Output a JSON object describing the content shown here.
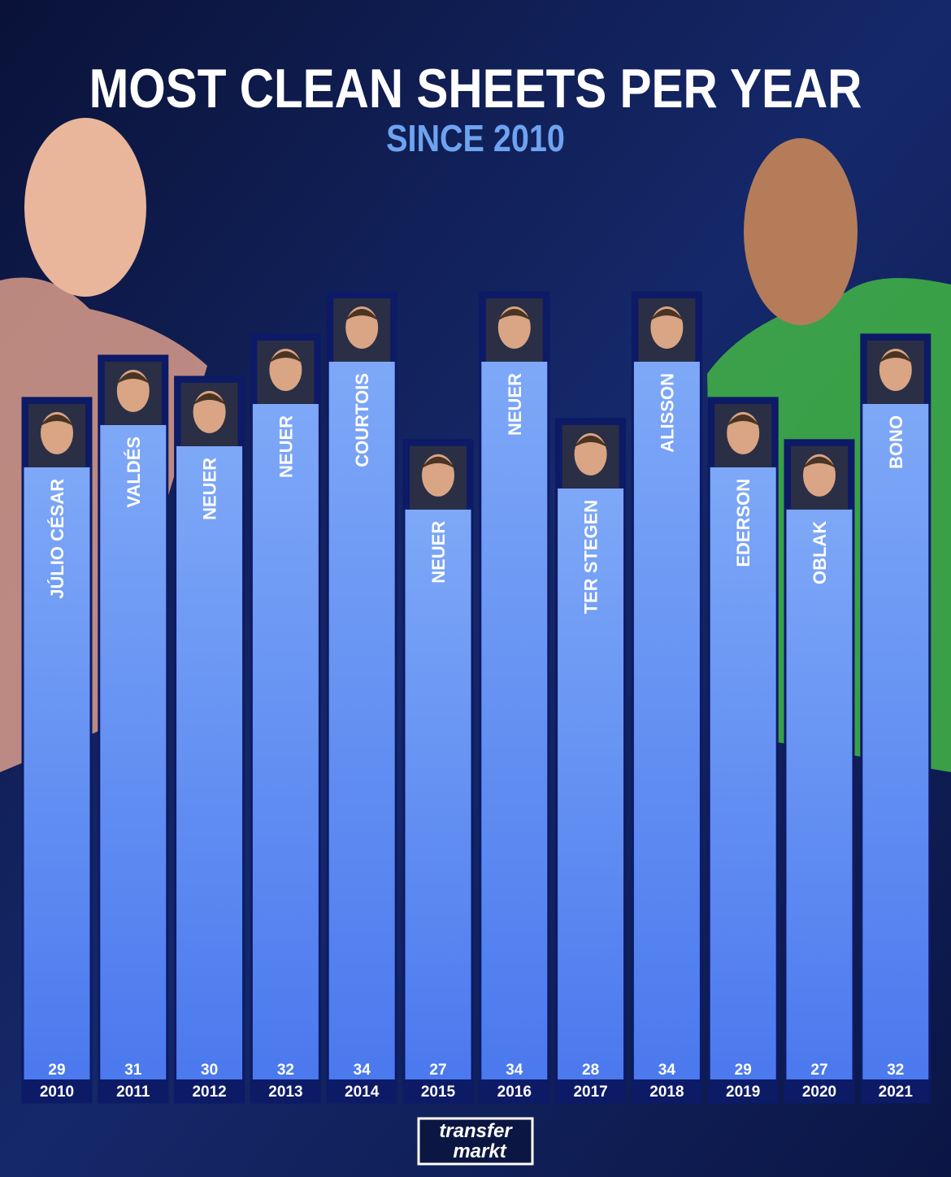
{
  "chart_data": {
    "type": "bar",
    "title": "MOST CLEAN SHEETS PER YEAR",
    "subtitle": "SINCE 2010",
    "categories": [
      "2010",
      "2011",
      "2012",
      "2013",
      "2014",
      "2015",
      "2016",
      "2017",
      "2018",
      "2019",
      "2020",
      "2021"
    ],
    "players": [
      "JÚLIO CÉSAR",
      "VALDÉS",
      "NEUER",
      "NEUER",
      "COURTOIS",
      "NEUER",
      "NEUER",
      "TER STEGEN",
      "ALISSON",
      "EDERSON",
      "OBLAK",
      "BONO"
    ],
    "values": [
      29,
      31,
      30,
      32,
      34,
      27,
      34,
      28,
      34,
      29,
      27,
      32
    ],
    "color": "#5b8af2"
  },
  "logo": {
    "line1": "transfer",
    "line2": "markt"
  }
}
